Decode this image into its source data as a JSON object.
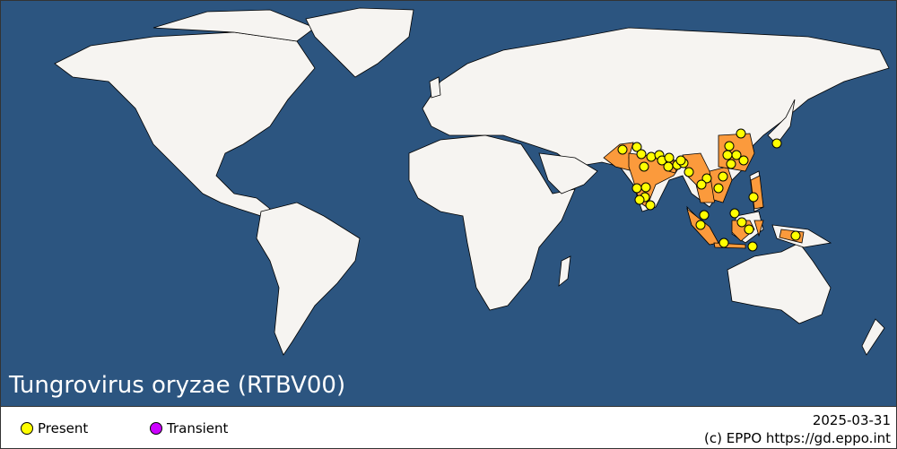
{
  "map": {
    "title": "Tungrovirus oryzae (RTBV00)",
    "ocean_color": "#2c5580",
    "land_color": "#f6f4f1",
    "affected_color": "#fb9a3c",
    "border_color": "#000000"
  },
  "legend": {
    "items": [
      {
        "label": "Present",
        "color": "#ffff00"
      },
      {
        "label": "Transient",
        "color": "#cc00ff"
      }
    ],
    "date": "2025-03-31",
    "copyright": "(c) EPPO https://gd.eppo.int"
  }
}
